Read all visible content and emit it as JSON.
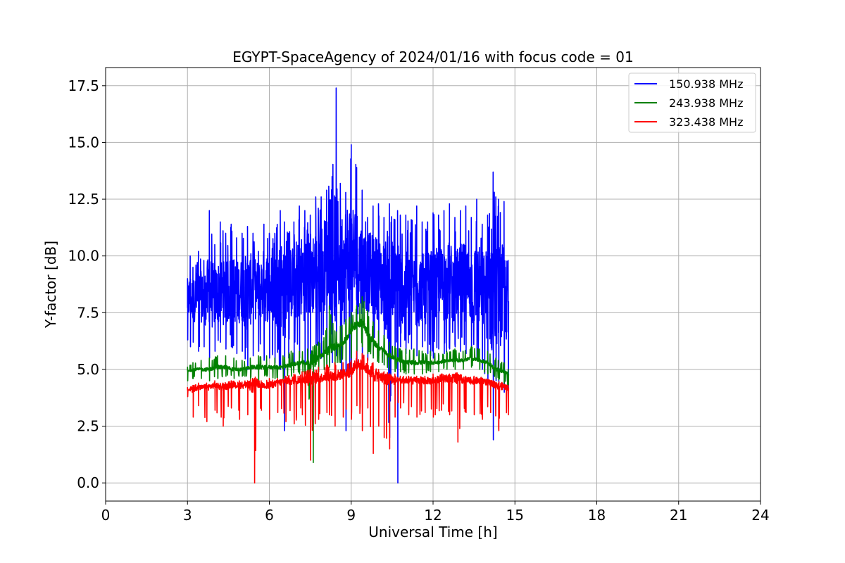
{
  "chart_data": {
    "type": "line",
    "title": "EGYPT-SpaceAgency of 2024/01/16 with focus code = 01",
    "xlabel": "Universal Time [h]",
    "ylabel": "Y-factor [dB]",
    "xlim": [
      0,
      24
    ],
    "ylim": [
      -0.8,
      18.3
    ],
    "xticks": [
      0,
      3,
      6,
      9,
      12,
      15,
      18,
      21,
      24
    ],
    "yticks": [
      0.0,
      2.5,
      5.0,
      7.5,
      10.0,
      12.5,
      15.0,
      17.5
    ],
    "xtick_labels": [
      "0",
      "3",
      "6",
      "9",
      "12",
      "15",
      "18",
      "21",
      "24"
    ],
    "ytick_labels": [
      "0.0",
      "2.5",
      "5.0",
      "7.5",
      "10.0",
      "12.5",
      "15.0",
      "17.5"
    ],
    "grid": true,
    "legend_position": "top-right",
    "series": [
      {
        "name": "150.938 MHz",
        "color": "#0000ff",
        "x": [
          3.0,
          3.1,
          3.2,
          3.4,
          3.6,
          3.8,
          4.0,
          4.2,
          4.4,
          4.6,
          4.8,
          5.0,
          5.2,
          5.4,
          5.6,
          5.8,
          6.0,
          6.2,
          6.4,
          6.55,
          6.7,
          6.9,
          7.1,
          7.3,
          7.5,
          7.7,
          7.9,
          8.1,
          8.3,
          8.45,
          8.6,
          8.8,
          9.0,
          9.2,
          9.4,
          9.6,
          9.8,
          10.0,
          10.2,
          10.4,
          10.6,
          10.7,
          10.8,
          11.0,
          11.2,
          11.4,
          11.6,
          11.8,
          12.0,
          12.2,
          12.4,
          12.6,
          12.8,
          13.0,
          13.2,
          13.4,
          13.6,
          13.8,
          14.0,
          14.2,
          14.3,
          14.4,
          14.6,
          14.75
        ],
        "upper": [
          9.0,
          10.0,
          9.5,
          10.2,
          9.8,
          12.0,
          10.5,
          11.5,
          11.0,
          11.4,
          10.8,
          11.0,
          11.3,
          11.0,
          10.2,
          11.4,
          11.0,
          11.0,
          12.0,
          11.5,
          11.0,
          11.5,
          12.2,
          12.0,
          11.8,
          12.6,
          12.6,
          12.9,
          13.5,
          17.4,
          13.2,
          12.8,
          14.9,
          13.9,
          12.9,
          11.7,
          12.2,
          12.3,
          11.7,
          12.3,
          11.6,
          12.0,
          11.8,
          11.8,
          11.6,
          12.2,
          11.5,
          11.5,
          11.9,
          11.8,
          12.0,
          12.3,
          11.7,
          12.0,
          12.2,
          11.7,
          12.5,
          11.4,
          11.8,
          13.7,
          12.6,
          12.5,
          12.4,
          9.8
        ],
        "lower": [
          6.3,
          6.0,
          6.2,
          5.8,
          6.0,
          5.5,
          5.8,
          6.2,
          5.9,
          6.0,
          5.7,
          5.8,
          5.0,
          5.6,
          5.8,
          5.4,
          5.5,
          5.3,
          5.0,
          2.3,
          5.5,
          5.3,
          5.5,
          4.9,
          4.7,
          5.4,
          5.5,
          5.2,
          5.3,
          5.6,
          5.4,
          2.3,
          4.8,
          5.2,
          5.5,
          5.4,
          5.6,
          5.6,
          5.2,
          2.0,
          5.8,
          0.0,
          6.0,
          5.7,
          5.9,
          5.6,
          6.0,
          5.7,
          5.5,
          5.9,
          5.7,
          5.9,
          6.0,
          5.8,
          5.7,
          5.5,
          5.4,
          5.0,
          4.3,
          1.9,
          4.5,
          4.2,
          4.0,
          3.9
        ],
        "mean": [
          8.0,
          8.2,
          8.0,
          8.3,
          8.1,
          8.4,
          8.2,
          8.5,
          8.3,
          8.6,
          8.4,
          8.5,
          8.4,
          8.6,
          8.5,
          8.7,
          8.6,
          8.5,
          8.8,
          8.6,
          8.7,
          8.9,
          9.0,
          9.1,
          9.2,
          9.4,
          9.5,
          9.7,
          9.8,
          10.0,
          9.8,
          9.6,
          9.9,
          9.8,
          9.5,
          9.3,
          9.2,
          9.0,
          8.8,
          8.7,
          8.6,
          8.6,
          8.7,
          8.5,
          8.6,
          8.4,
          8.6,
          8.5,
          8.6,
          8.7,
          8.8,
          8.9,
          8.7,
          8.8,
          8.9,
          8.6,
          8.7,
          8.5,
          8.3,
          8.6,
          8.4,
          8.3,
          8.2,
          8.0
        ]
      },
      {
        "name": "243.938 MHz",
        "color": "#008000",
        "x": [
          3.0,
          3.2,
          3.5,
          3.8,
          4.1,
          4.4,
          4.7,
          5.0,
          5.3,
          5.6,
          5.9,
          6.2,
          6.5,
          6.8,
          7.1,
          7.4,
          7.6,
          7.8,
          8.0,
          8.2,
          8.4,
          8.6,
          8.8,
          9.0,
          9.2,
          9.4,
          9.6,
          9.8,
          10.0,
          10.2,
          10.4,
          10.6,
          10.8,
          11.0,
          11.3,
          11.6,
          11.9,
          12.2,
          12.5,
          12.8,
          13.1,
          13.4,
          13.7,
          14.0,
          14.3,
          14.6,
          14.75
        ],
        "upper": [
          5.1,
          5.3,
          5.4,
          5.5,
          5.6,
          5.6,
          5.5,
          5.4,
          5.5,
          5.6,
          5.6,
          5.5,
          5.6,
          5.8,
          5.8,
          5.9,
          6.0,
          6.2,
          6.4,
          7.8,
          6.7,
          6.9,
          7.2,
          7.5,
          7.8,
          8.2,
          7.6,
          7.1,
          6.7,
          6.5,
          6.2,
          6.0,
          5.9,
          5.9,
          5.9,
          5.8,
          5.8,
          5.7,
          5.8,
          5.9,
          5.8,
          6.0,
          5.9,
          5.8,
          5.5,
          5.3,
          5.0
        ],
        "lower": [
          4.5,
          4.6,
          4.6,
          4.5,
          4.6,
          4.7,
          4.6,
          4.7,
          4.6,
          4.5,
          4.7,
          4.6,
          4.6,
          4.7,
          4.8,
          4.7,
          0.9,
          4.9,
          5.0,
          5.1,
          5.2,
          5.3,
          5.4,
          5.5,
          5.8,
          6.0,
          5.7,
          5.5,
          5.3,
          5.2,
          5.0,
          4.9,
          4.9,
          4.8,
          4.8,
          4.8,
          4.9,
          4.9,
          5.0,
          5.0,
          5.0,
          5.1,
          5.0,
          4.8,
          4.6,
          4.4,
          4.3
        ],
        "mean": [
          4.9,
          5.0,
          5.0,
          5.0,
          5.1,
          5.1,
          5.0,
          5.0,
          5.1,
          5.1,
          5.1,
          5.1,
          5.1,
          5.2,
          5.3,
          5.3,
          5.4,
          5.5,
          5.7,
          5.9,
          6.0,
          6.1,
          6.3,
          6.8,
          7.0,
          7.1,
          6.6,
          6.2,
          6.0,
          5.8,
          5.6,
          5.5,
          5.4,
          5.3,
          5.3,
          5.3,
          5.3,
          5.3,
          5.4,
          5.4,
          5.4,
          5.5,
          5.4,
          5.3,
          5.0,
          4.9,
          4.8
        ]
      },
      {
        "name": "323.438 MHz",
        "color": "#ff0000",
        "x": [
          3.0,
          3.2,
          3.4,
          3.7,
          4.0,
          4.3,
          4.6,
          4.9,
          5.2,
          5.45,
          5.7,
          6.0,
          6.3,
          6.6,
          6.9,
          7.2,
          7.5,
          7.8,
          8.1,
          8.4,
          8.7,
          9.0,
          9.2,
          9.4,
          9.6,
          9.8,
          10.0,
          10.2,
          10.4,
          10.6,
          10.8,
          11.1,
          11.4,
          11.7,
          12.0,
          12.3,
          12.6,
          12.9,
          13.2,
          13.5,
          13.8,
          14.1,
          14.4,
          14.75
        ],
        "upper": [
          4.2,
          4.3,
          4.4,
          4.4,
          4.5,
          4.4,
          4.5,
          4.5,
          4.5,
          4.6,
          4.5,
          4.6,
          4.6,
          4.7,
          4.8,
          4.9,
          5.0,
          5.1,
          5.2,
          5.3,
          5.3,
          5.4,
          5.8,
          5.7,
          5.5,
          5.3,
          5.0,
          4.9,
          4.8,
          4.8,
          4.7,
          4.7,
          4.7,
          4.7,
          4.8,
          4.8,
          4.8,
          4.8,
          4.7,
          4.7,
          4.6,
          4.5,
          4.4,
          4.3
        ],
        "lower": [
          3.8,
          2.9,
          3.4,
          2.7,
          3.2,
          2.5,
          3.3,
          2.8,
          3.0,
          0.0,
          3.2,
          2.8,
          3.1,
          2.7,
          2.6,
          3.0,
          1.0,
          2.8,
          3.1,
          2.5,
          2.9,
          2.8,
          3.4,
          2.3,
          3.3,
          1.3,
          2.5,
          2.0,
          1.5,
          2.9,
          3.3,
          3.0,
          2.9,
          3.1,
          2.9,
          3.2,
          3.0,
          1.8,
          3.1,
          3.0,
          2.8,
          3.1,
          2.3,
          3.0
        ],
        "mean": [
          4.1,
          4.1,
          4.2,
          4.2,
          4.3,
          4.2,
          4.3,
          4.3,
          4.3,
          4.3,
          4.3,
          4.3,
          4.4,
          4.5,
          4.5,
          4.6,
          4.6,
          4.6,
          4.7,
          4.7,
          4.8,
          4.9,
          5.3,
          5.2,
          5.0,
          4.8,
          4.7,
          4.6,
          4.6,
          4.5,
          4.5,
          4.5,
          4.5,
          4.5,
          4.5,
          4.6,
          4.6,
          4.6,
          4.5,
          4.5,
          4.5,
          4.4,
          4.3,
          4.2
        ]
      }
    ]
  }
}
